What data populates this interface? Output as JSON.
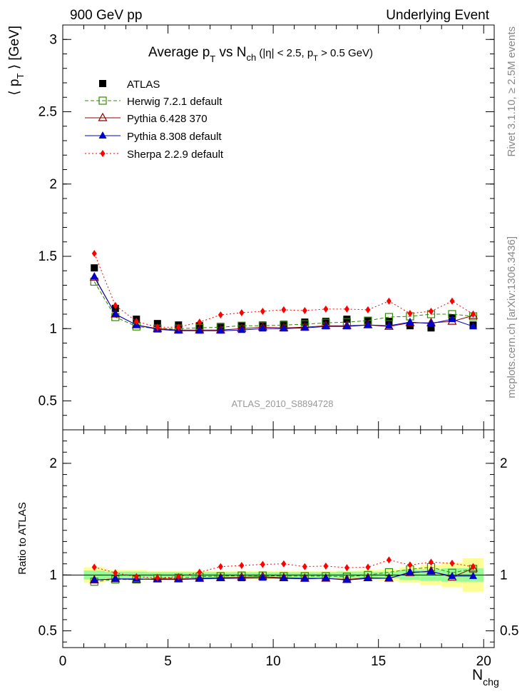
{
  "header": {
    "left": "900 GeV pp",
    "right": "Underlying Event"
  },
  "side_labels": {
    "top": "Rivet 3.1.10, ≥ 2.5M events",
    "bottom": "mcplots.cern.ch [arXiv:1306.3436]"
  },
  "chart_data": [
    {
      "type": "scatter",
      "panel": "main",
      "title": "Average p_T vs N_ch (|η| < 2.5, p_T > 0.5 GeV)",
      "title_parts": {
        "t1": "Average p",
        "t1_sub": "T",
        "t2": " vs N",
        "t2_sub": "ch",
        "t3": " (|η| < 2.5, p",
        "t3_sub": "T",
        "t4": " > 0.5 GeV)"
      },
      "ylabel": "⟨ p_T ⟩ [GeV]",
      "ylabel_parts": {
        "a": "⟨ p",
        "sub": "T",
        "b": " ⟩ [GeV]"
      },
      "watermark": "ATLAS_2010_S8894728",
      "xlim": [
        0,
        20.5
      ],
      "ylim": [
        0.3,
        3.1
      ],
      "y_ticks": [
        "0.5",
        "1",
        "1.5",
        "2",
        "2.5",
        "3"
      ],
      "x_ticks": [
        "0",
        "5",
        "10",
        "15",
        "20"
      ],
      "grid": false,
      "legend_position": "top-left",
      "x": [
        1.5,
        2.5,
        3.5,
        4.5,
        5.5,
        6.5,
        7.5,
        8.5,
        9.5,
        10.5,
        11.5,
        12.5,
        13.5,
        14.5,
        15.5,
        16.5,
        17.5,
        18.5,
        19.5
      ],
      "series": [
        {
          "name": "ATLAS",
          "marker": "filled-square",
          "line": "none",
          "color": "#000000",
          "values": [
            1.42,
            1.14,
            1.065,
            1.035,
            1.025,
            1.02,
            1.015,
            1.02,
            1.025,
            1.03,
            1.045,
            1.05,
            1.065,
            1.055,
            1.05,
            1.02,
            1.005,
            1.075,
            1.025
          ]
        },
        {
          "name": "Herwig 7.2.1 default",
          "marker": "open-square",
          "line": "dashed",
          "color": "#2e8b00",
          "values": [
            1.325,
            1.08,
            1.015,
            1.0,
            1.0,
            1.005,
            1.01,
            1.02,
            1.02,
            1.025,
            1.03,
            1.04,
            1.045,
            1.055,
            1.08,
            1.085,
            1.1,
            1.1,
            1.085
          ]
        },
        {
          "name": "Pythia 6.428 370",
          "marker": "open-triangle",
          "line": "solid",
          "color": "#8b0000",
          "values": [
            1.355,
            1.1,
            1.025,
            1.0,
            0.99,
            0.99,
            0.99,
            1.0,
            1.01,
            1.005,
            1.01,
            1.02,
            1.02,
            1.025,
            1.015,
            1.04,
            1.04,
            1.05,
            1.09
          ]
        },
        {
          "name": "Pythia 8.308 default",
          "marker": "filled-triangle",
          "line": "solid",
          "color": "#0000cc",
          "values": [
            1.36,
            1.1,
            1.025,
            0.995,
            0.985,
            0.985,
            0.985,
            0.99,
            1.0,
            1.0,
            1.005,
            1.015,
            1.015,
            1.025,
            1.02,
            1.045,
            1.035,
            1.065,
            1.015
          ]
        },
        {
          "name": "Sherpa 2.2.9 default",
          "marker": "filled-diamond",
          "line": "dotted",
          "color": "#ff0000",
          "values": [
            1.52,
            1.16,
            1.05,
            1.01,
            1.01,
            1.045,
            1.095,
            1.11,
            1.12,
            1.13,
            1.125,
            1.135,
            1.135,
            1.13,
            1.19,
            1.105,
            1.12,
            1.19,
            1.1
          ]
        }
      ]
    },
    {
      "type": "scatter",
      "panel": "ratio",
      "ylabel": "Ratio to ATLAS",
      "xlabel": "N_chg",
      "xlabel_parts": {
        "main": "N",
        "sub": "chg"
      },
      "xlim": [
        0,
        20.5
      ],
      "ylim": [
        0.35,
        2.3
      ],
      "y_ticks": [
        "0.5",
        "1",
        "2"
      ],
      "x_ticks": [
        "0",
        "5",
        "10",
        "15",
        "20"
      ],
      "grid": false,
      "x": [
        1.5,
        2.5,
        3.5,
        4.5,
        5.5,
        6.5,
        7.5,
        8.5,
        9.5,
        10.5,
        11.5,
        12.5,
        13.5,
        14.5,
        15.5,
        16.5,
        17.5,
        18.5,
        19.5
      ],
      "band_stat": [
        0.04,
        0.03,
        0.03,
        0.025,
        0.025,
        0.025,
        0.025,
        0.025,
        0.025,
        0.025,
        0.025,
        0.025,
        0.03,
        0.03,
        0.03,
        0.045,
        0.05,
        0.06,
        0.06
      ],
      "band_total": [
        0.07,
        0.045,
        0.045,
        0.035,
        0.035,
        0.035,
        0.035,
        0.035,
        0.035,
        0.035,
        0.035,
        0.035,
        0.04,
        0.045,
        0.05,
        0.07,
        0.09,
        0.11,
        0.15
      ],
      "series": [
        {
          "name": "Herwig 7.2.1 default",
          "values": [
            0.94,
            0.96,
            0.96,
            0.97,
            0.975,
            0.985,
            0.99,
            0.995,
            0.995,
            0.99,
            0.99,
            0.99,
            0.985,
            1.0,
            1.025,
            1.05,
            1.07,
            1.02,
            1.055
          ]
        },
        {
          "name": "Pythia 6.428 370",
          "values": [
            0.955,
            0.965,
            0.96,
            0.965,
            0.965,
            0.97,
            0.975,
            0.98,
            0.985,
            0.975,
            0.97,
            0.97,
            0.96,
            0.975,
            0.97,
            1.02,
            1.035,
            0.98,
            1.06
          ]
        },
        {
          "name": "Pythia 8.308 default",
          "values": [
            0.955,
            0.965,
            0.965,
            0.96,
            0.96,
            0.965,
            0.97,
            0.97,
            0.975,
            0.97,
            0.965,
            0.97,
            0.955,
            0.97,
            0.97,
            1.025,
            1.03,
            0.99,
            0.99
          ]
        },
        {
          "name": "Sherpa 2.2.9 default",
          "values": [
            1.07,
            1.02,
            0.985,
            0.975,
            0.985,
            1.025,
            1.075,
            1.085,
            1.095,
            1.1,
            1.075,
            1.08,
            1.065,
            1.07,
            1.135,
            1.09,
            1.115,
            1.105,
            1.075
          ]
        }
      ]
    }
  ]
}
